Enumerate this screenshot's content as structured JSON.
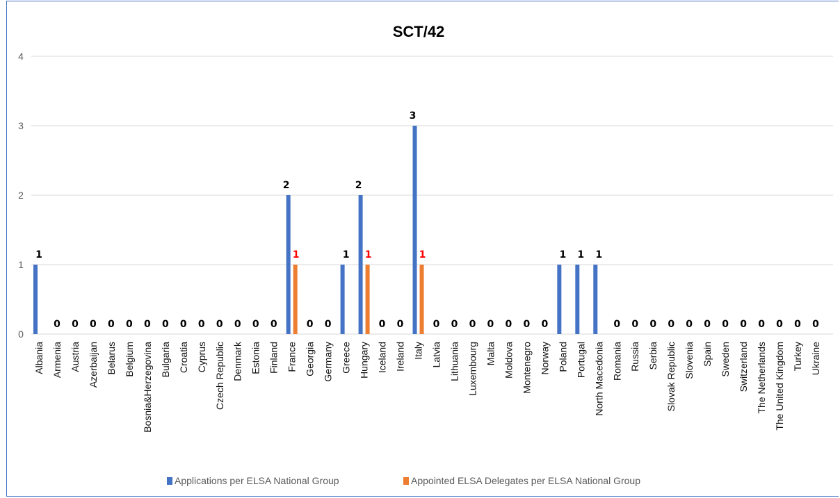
{
  "chart_data": {
    "type": "bar",
    "title": "SCT/42",
    "xlabel": "",
    "ylabel": "",
    "ylim": [
      0,
      4
    ],
    "yticks": [
      0,
      1,
      2,
      3,
      4
    ],
    "grid": true,
    "legend_position": "bottom",
    "categories": [
      "Albania",
      "Armenia",
      "Austria",
      "Azerbaijan",
      "Belarus",
      "Belgium",
      "Bosnia&Herzegovina",
      "Bulgaria",
      "Croatia",
      "Cyprus",
      "Czech Republic",
      "Denmark",
      "Estonia",
      "Finland",
      "France",
      "Georgia",
      "Germany",
      "Greece",
      "Hungary",
      "Iceland",
      "Ireland",
      "Italy",
      "Latvia",
      "Lithuania",
      "Luxembourg",
      "Malta",
      "Moldova",
      "Montenegro",
      "Norway",
      "Poland",
      "Portugal",
      "North Macedonia",
      "Romania",
      "Russia",
      "Serbia",
      "Slovak Republic",
      "Slovenia",
      "Spain",
      "Sweden",
      "Switzerland",
      "The Netherlands",
      "The United Kingdom",
      "Turkey",
      "Ukraine"
    ],
    "series": [
      {
        "name": "Applications per ELSA National Group",
        "color": "#4472c4",
        "label_color": "#000000",
        "values": [
          1,
          0,
          0,
          0,
          0,
          0,
          0,
          0,
          0,
          0,
          0,
          0,
          0,
          0,
          2,
          0,
          0,
          1,
          2,
          0,
          0,
          3,
          0,
          0,
          0,
          0,
          0,
          0,
          0,
          1,
          1,
          1,
          0,
          0,
          0,
          0,
          0,
          0,
          0,
          0,
          0,
          0,
          0,
          0
        ]
      },
      {
        "name": "Appointed ELSA Delegates per ELSA National Group",
        "color": "#ed7d31",
        "label_color": "#ff0000",
        "values": [
          0,
          0,
          0,
          0,
          0,
          0,
          0,
          0,
          0,
          0,
          0,
          0,
          0,
          0,
          1,
          0,
          0,
          0,
          1,
          0,
          0,
          1,
          0,
          0,
          0,
          0,
          0,
          0,
          0,
          0,
          0,
          0,
          0,
          0,
          0,
          0,
          0,
          0,
          0,
          0,
          0,
          0,
          0,
          0
        ]
      }
    ]
  }
}
